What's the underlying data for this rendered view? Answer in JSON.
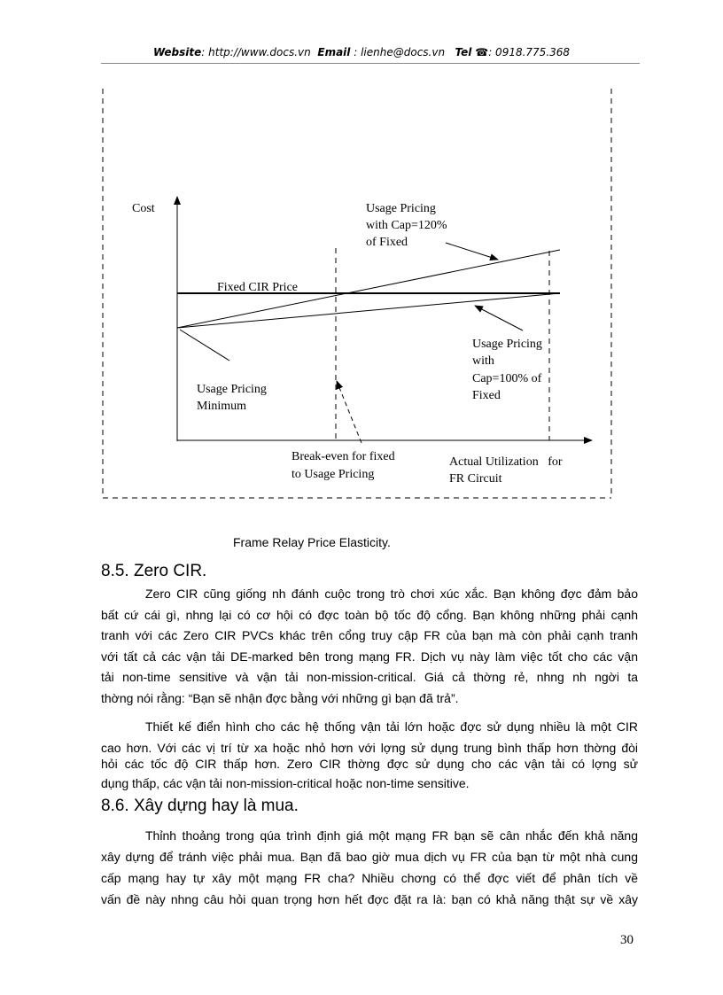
{
  "header": {
    "website_label": "Website",
    "website": ": http://www.docs.vn",
    "email_label": "Email",
    "email": ": lienhe@docs.vn",
    "tel_label": "Tel",
    "tel_icon": "phone-icon",
    "tel": ": 0918.775.368"
  },
  "figure": {
    "y_label": "Cost",
    "fixed_label": "Fixed CIR Price",
    "cap120_label": [
      "Usage Pricing",
      "with  Cap=120%",
      "of Fixed"
    ],
    "cap100_label": [
      "Usage Pricing",
      "with",
      "Cap=100% of",
      "Fixed"
    ],
    "minimum_label": [
      "Usage Pricing",
      "Minimum"
    ],
    "breakeven_label": [
      "Break-even for fixed",
      "to Usage Pricing"
    ],
    "x_label": [
      "Actual Utilization   for",
      "FR Circuit"
    ],
    "caption": "Frame Relay Price Elasticity."
  },
  "sections": [
    {
      "heading": "8.5. Zero CIR.",
      "paragraphs": [
        [
          "Zero CIR cũng giống nh   đánh cuộc trong trò chơi xúc xắc. Bạn không đợc   đảm bảo",
          "bất cứ cái gì, nhng   lại có cơ hội có đợc   toàn bộ tốc độ cổng. Bạn không những phải cạnh",
          "tranh với các Zero CIR PVCs khác trên cổng truy cập FR của bạn mà còn phải cạnh tranh",
          "với tất cả các vận tải DE-marked bên trong mạng FR. Dịch vụ này làm việc tốt cho các vận",
          "tải non-time sensitive và vận tải non-mission-critical. Giá cả thờng   rẻ, nhng   nh   ngời   ta",
          "thờng   nói rằng: “Bạn sẽ nhận đợc   bằng với những gì bạn đã trả”."
        ],
        [
          "Thiết kế điển hình cho các hệ thống vận tải lớn hoặc đợc   sử dụng nhiều là một CIR",
          "cao hơn. Với các vị trí từ xa hoặc nhỏ hơn với lợng   sử dụng trung bình thấp hơn thờng   đòi",
          "hỏi các tốc độ CIR thấp hơn. Zero CIR thờng   đợc   sử dụng cho các vận tải có lợng   sử",
          "dụng thấp, các vận tải non-mission-critical hoặc non-time sensitive."
        ]
      ]
    },
    {
      "heading": "8.6. Xây dựng hay là mua.",
      "paragraphs": [
        [
          "Thỉnh thoảng trong qúa trình định giá một mạng FR bạn sẽ cân nhắc đến khả năng",
          "xây dựng để tránh việc phải mua. Bạn đã bao giờ mua dịch vụ FR của bạn từ một nhà cung",
          "cấp mạng hay tự xây một mạng FR cha?   Nhiều chơng   có thể đợc   viết để phân tích về",
          "vấn đề này nhng   câu hỏi quan trọng hơn hết đợc   đặt ra là: bạn có khả năng thật sự về xây"
        ]
      ]
    }
  ],
  "page_number": "30"
}
